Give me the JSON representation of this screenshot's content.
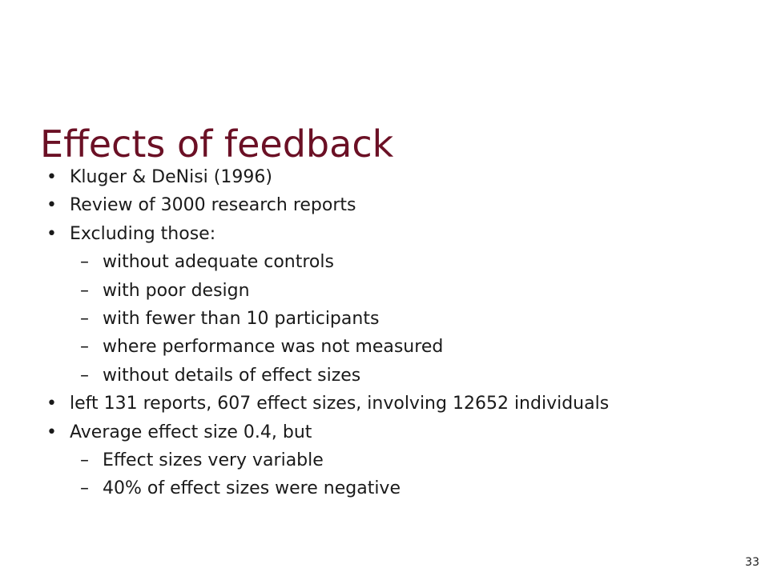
{
  "slide": {
    "title": "Effects of feedback",
    "page_number": "33",
    "bullets": [
      "Kluger & DeNisi (1996)",
      "Review of 3000 research reports",
      "Excluding those:",
      "without adequate controls",
      "with poor design",
      "with fewer than 10 participants",
      "where performance was not measured",
      "without details of effect sizes",
      "left 131 reports, 607 effect sizes, involving 12652 individuals",
      "Average effect size 0.4, but",
      "Effect sizes very variable",
      "40% of effect sizes were negative"
    ],
    "colors": {
      "title": "#6b1025",
      "text": "#1a1a1a",
      "background": "#ffffff"
    }
  }
}
